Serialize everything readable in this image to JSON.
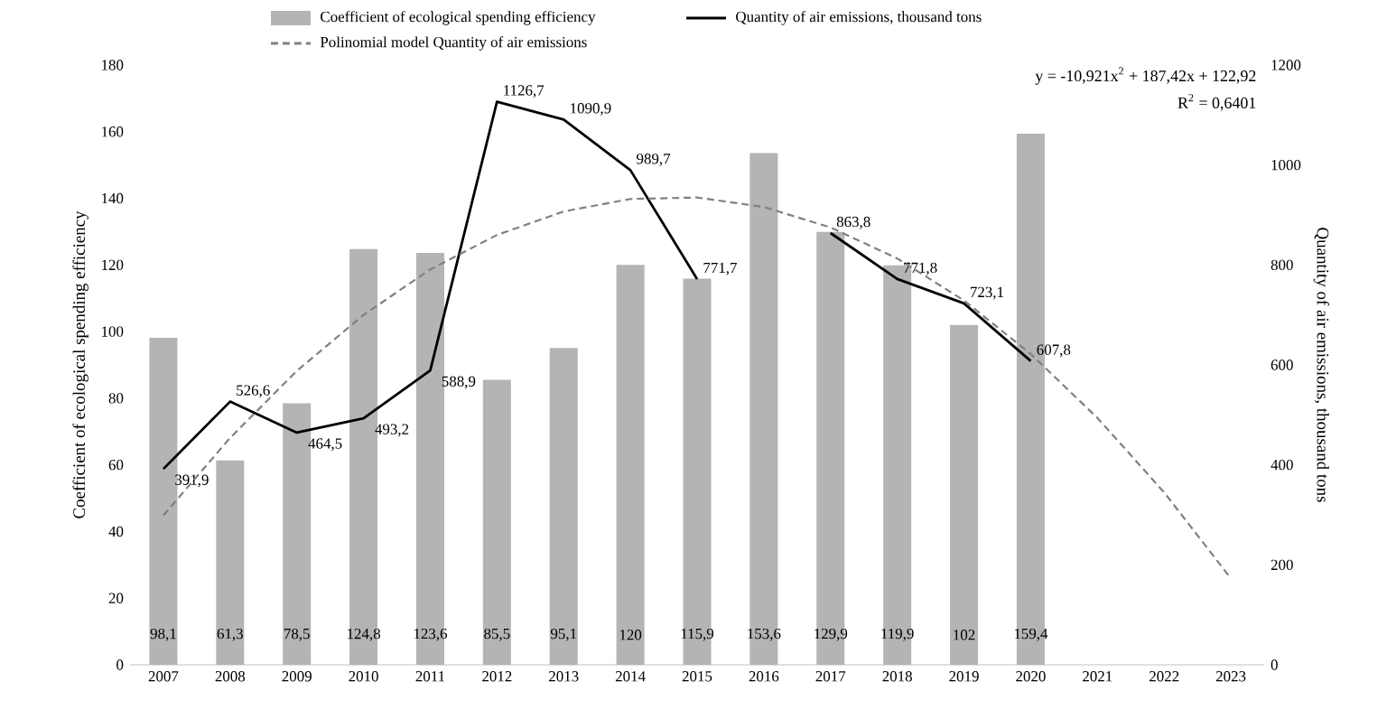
{
  "chart_data": {
    "type": "bar",
    "categories": [
      "2007",
      "2008",
      "2009",
      "2010",
      "2011",
      "2012",
      "2013",
      "2014",
      "2015",
      "2016",
      "2017",
      "2018",
      "2019",
      "2020",
      "2021",
      "2022",
      "2023"
    ],
    "series": [
      {
        "name": "Coefficient of ecological spending  efficiency",
        "axis": "y",
        "color": "#b4b4b4",
        "values": [
          98.1,
          61.3,
          78.5,
          124.8,
          123.6,
          85.5,
          95.1,
          120,
          115.9,
          153.6,
          129.9,
          119.9,
          102,
          159.4,
          null,
          null,
          null
        ],
        "value_labels": [
          "98,1",
          "61,3",
          "78,5",
          "124,8",
          "123,6",
          "85,5",
          "95,1",
          "120",
          "115,9",
          "153,6",
          "129,9",
          "119,9",
          "102",
          "159,4",
          null,
          null,
          null
        ]
      },
      {
        "name": "Quantity of air emissions, thousand tons",
        "type": "line",
        "axis": "y2",
        "color": "#000000",
        "line_style": "solid",
        "values": [
          391.9,
          526.6,
          464.5,
          493.2,
          588.9,
          1126.7,
          1090.9,
          989.7,
          771.7,
          null,
          863.8,
          771.8,
          723.1,
          607.8,
          null,
          null,
          null
        ],
        "value_labels": [
          "391,9",
          "526,6",
          "464,5",
          "493,2",
          "588,9",
          "1126,7",
          "1090,9",
          "989,7",
          "771,7",
          null,
          "863,8",
          "771,8",
          "723,1",
          "607,8",
          null,
          null,
          null
        ]
      },
      {
        "name": "Polinomial model Quantity of air emissions",
        "type": "line",
        "axis": "y2",
        "color": "#808080",
        "line_style": "dashed",
        "values": [
          299,
          454,
          588,
          700,
          791,
          860,
          907,
          932,
          935,
          916,
          875,
          813,
          729,
          622,
          494,
          345,
          173
        ]
      }
    ],
    "ylabel": "Coefficient of ecological spending efficiency",
    "y2label": "Quantity of air emissions, thousand tons",
    "ylim": [
      0,
      180
    ],
    "yticks": [
      0,
      20,
      40,
      60,
      80,
      100,
      120,
      140,
      160,
      180
    ],
    "y2lim": [
      0,
      1200
    ],
    "y2ticks": [
      0,
      200,
      400,
      600,
      800,
      1000,
      1200
    ],
    "legend": "top",
    "annotations": [
      "y = -10,921x$^{2}$ + 187,42x + 122,92",
      "R$^{2}$ = 0,6401"
    ]
  }
}
